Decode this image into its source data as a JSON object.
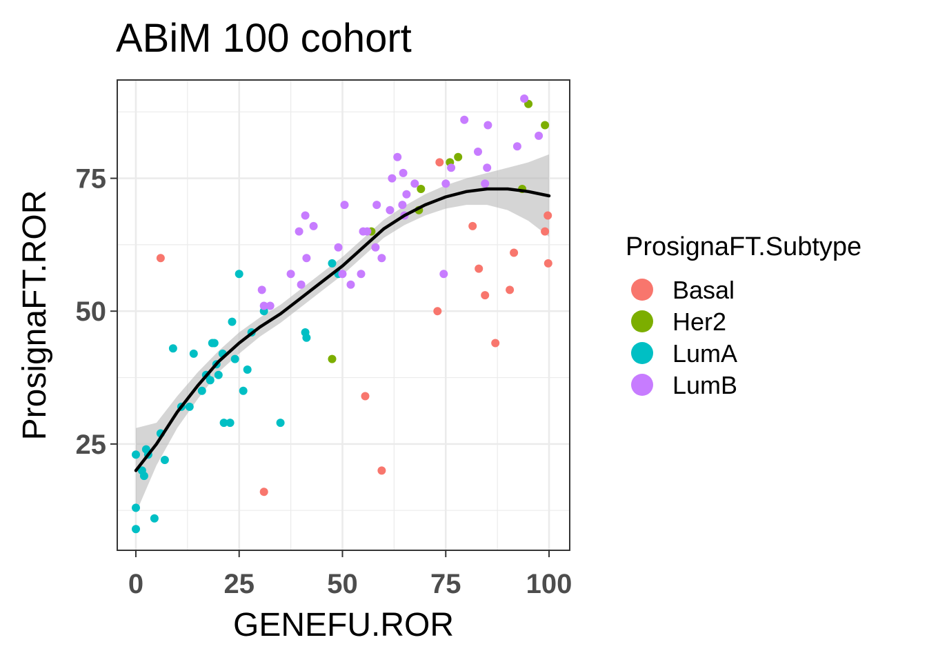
{
  "chart_data": {
    "type": "scatter",
    "title": "ABiM 100 cohort",
    "xlabel": "GENEFU.ROR",
    "ylabel": "ProsignaFT.ROR",
    "xlim": [
      -4.5,
      105
    ],
    "ylim": [
      5,
      93.5
    ],
    "x_ticks": [
      0,
      25,
      50,
      75,
      100
    ],
    "y_ticks": [
      25,
      50,
      75
    ],
    "x_tick_labels": [
      "0",
      "25",
      "50",
      "75",
      "100"
    ],
    "y_tick_labels": [
      "25",
      "50",
      "75"
    ],
    "grid": true,
    "legend_position": "right",
    "legend_title": "ProsignaFT.Subtype",
    "series": [
      {
        "name": "Basal",
        "color": "#F8766D",
        "points": [
          [
            6,
            60
          ],
          [
            31,
            16
          ],
          [
            55.5,
            34
          ],
          [
            59.5,
            20
          ],
          [
            73.5,
            78
          ],
          [
            73,
            50
          ],
          [
            81.5,
            66
          ],
          [
            83,
            58
          ],
          [
            84.5,
            53
          ],
          [
            87,
            44
          ],
          [
            90.5,
            54
          ],
          [
            91.5,
            61
          ],
          [
            99,
            65
          ],
          [
            99.7,
            68
          ],
          [
            99.8,
            59
          ]
        ]
      },
      {
        "name": "Her2",
        "color": "#7CAE00",
        "points": [
          [
            47.5,
            41
          ],
          [
            57,
            65
          ],
          [
            68.5,
            69
          ],
          [
            69,
            73
          ],
          [
            76,
            78
          ],
          [
            78,
            79
          ],
          [
            93.5,
            73
          ],
          [
            95,
            89
          ],
          [
            99,
            85
          ]
        ]
      },
      {
        "name": "LumA",
        "color": "#00BFC4",
        "points": [
          [
            0,
            23
          ],
          [
            0,
            13
          ],
          [
            0,
            9
          ],
          [
            1.5,
            20
          ],
          [
            2,
            19
          ],
          [
            2.5,
            24
          ],
          [
            3,
            23
          ],
          [
            4.5,
            11
          ],
          [
            6,
            27
          ],
          [
            7,
            22
          ],
          [
            9,
            43
          ],
          [
            11,
            32
          ],
          [
            13,
            32
          ],
          [
            14,
            42
          ],
          [
            16,
            35
          ],
          [
            17,
            38
          ],
          [
            18,
            37
          ],
          [
            18.5,
            44
          ],
          [
            19,
            44
          ],
          [
            19.5,
            40
          ],
          [
            20,
            38
          ],
          [
            21,
            42
          ],
          [
            21.3,
            29
          ],
          [
            22.8,
            29
          ],
          [
            23.3,
            48
          ],
          [
            24,
            41
          ],
          [
            25,
            57
          ],
          [
            26,
            35
          ],
          [
            27,
            39
          ],
          [
            28,
            46
          ],
          [
            31,
            50
          ],
          [
            35,
            29
          ],
          [
            41,
            46
          ],
          [
            41.3,
            45
          ],
          [
            47.5,
            59
          ],
          [
            49,
            57
          ]
        ]
      },
      {
        "name": "LumB",
        "color": "#C77CFF",
        "points": [
          [
            30.5,
            54
          ],
          [
            31,
            51
          ],
          [
            32.5,
            51
          ],
          [
            37.5,
            57
          ],
          [
            39.5,
            65
          ],
          [
            40,
            55
          ],
          [
            41,
            68
          ],
          [
            41.3,
            60
          ],
          [
            43,
            66
          ],
          [
            49,
            62
          ],
          [
            50,
            57
          ],
          [
            50.5,
            70
          ],
          [
            52,
            55
          ],
          [
            54.5,
            57
          ],
          [
            55,
            65
          ],
          [
            56,
            65
          ],
          [
            58,
            62
          ],
          [
            58.3,
            70
          ],
          [
            59.5,
            60
          ],
          [
            61.5,
            69
          ],
          [
            62,
            75
          ],
          [
            63.3,
            79
          ],
          [
            64.5,
            70
          ],
          [
            64.7,
            76
          ],
          [
            65,
            68
          ],
          [
            65.5,
            72
          ],
          [
            67.5,
            74
          ],
          [
            74.5,
            57
          ],
          [
            75,
            74
          ],
          [
            76.3,
            77
          ],
          [
            79.5,
            86
          ],
          [
            82.8,
            80
          ],
          [
            84.5,
            74
          ],
          [
            85,
            77
          ],
          [
            85.2,
            85
          ],
          [
            92.3,
            81
          ],
          [
            94,
            90
          ],
          [
            97.5,
            83
          ]
        ]
      }
    ],
    "smooth": {
      "color": "#000000",
      "band_color": "#b3b3b3",
      "x": [
        0,
        5,
        10,
        15,
        20,
        25,
        30,
        35,
        40,
        45,
        50,
        55,
        60,
        65,
        70,
        75,
        80,
        85,
        90,
        95,
        100
      ],
      "y": [
        20,
        25,
        31,
        36,
        40.5,
        44,
        47,
        49.5,
        52.5,
        55.5,
        58.5,
        62,
        65.5,
        68,
        70,
        71.5,
        72.5,
        73,
        73,
        72.5,
        71.7
      ],
      "lower": [
        12,
        21,
        28,
        33.5,
        38.5,
        42,
        45.2,
        47.8,
        50.8,
        53.8,
        56.8,
        60.3,
        63.8,
        66.2,
        68,
        69.3,
        70,
        70,
        69,
        67,
        64
      ],
      "upper": [
        28,
        29,
        34,
        38.5,
        42.5,
        46,
        48.8,
        51.2,
        54.2,
        57.2,
        60.2,
        63.7,
        67.2,
        69.8,
        72,
        73.7,
        75,
        76,
        77,
        78,
        79.5
      ]
    }
  }
}
